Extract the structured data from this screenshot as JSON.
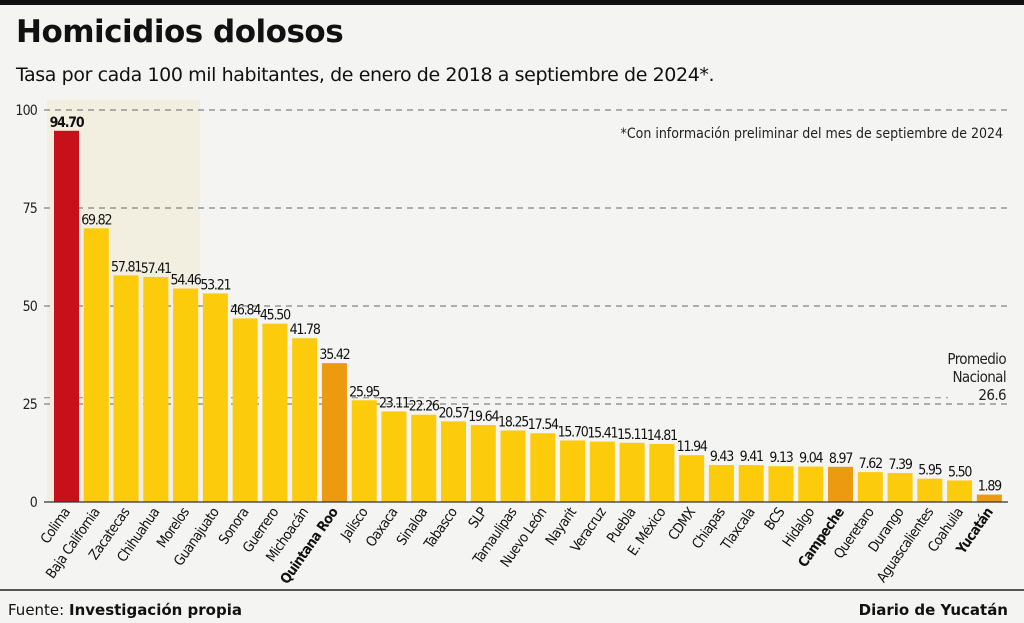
{
  "title": "Homicidios dolosos",
  "subtitle": "Tasa por cada 100 mil habitantes, de enero de 2018 a septiembre de 2024*.",
  "footer": {
    "source_label": "Fuente:",
    "source_value": "Investigación propia",
    "brand": "Diario de Yucatán"
  },
  "chart_data": {
    "type": "bar",
    "title": "Homicidios dolosos",
    "ylim": [
      0,
      100
    ],
    "yticks": [
      0,
      25,
      50,
      75,
      100
    ],
    "grid": "dashed horizontal",
    "note": "*Con información preliminar del mes de septiembre de 2024",
    "reference_line": {
      "label_lines": [
        "Promedio",
        "Nacional",
        "26.6"
      ],
      "value": 26.6
    },
    "categories": [
      "Colima",
      "Baja California",
      "Zacatecas",
      "Chihuahua",
      "Morelos",
      "Guanajuato",
      "Sonora",
      "Guerrero",
      "Michoacán",
      "Quintana Roo",
      "Jalisco",
      "Oaxaca",
      "Sinaloa",
      "Tabasco",
      "SLP",
      "Tamaulipas",
      "Nuevo León",
      "Nayarit",
      "Veracruz",
      "Puebla",
      "E. México",
      "CDMX",
      "Chiapas",
      "Tlaxcala",
      "BCS",
      "Hidalgo",
      "Campeche",
      "Queretaro",
      "Durango",
      "Aguascalientes",
      "Coahuila",
      "Yucatán"
    ],
    "values": [
      94.7,
      69.82,
      57.81,
      57.41,
      54.46,
      53.21,
      46.84,
      45.5,
      41.78,
      35.42,
      25.95,
      23.11,
      22.26,
      20.57,
      19.64,
      18.25,
      17.54,
      15.7,
      15.41,
      15.11,
      14.81,
      11.94,
      9.43,
      9.41,
      9.13,
      9.04,
      8.97,
      7.62,
      7.39,
      5.95,
      5.5,
      1.89
    ],
    "value_labels": [
      "94.70",
      "69.82",
      "57.81",
      "57.41",
      "54.46",
      "53.21",
      "46.84",
      "45.50",
      "41.78",
      "35.42",
      "25.95",
      "23.11",
      "22.26",
      "20.57",
      "19.64",
      "18.25",
      "17.54",
      "15.70",
      "15.41",
      "15.11",
      "14.81",
      "11.94",
      "9.43",
      "9.41",
      "9.13",
      "9.04",
      "8.97",
      "7.62",
      "7.39",
      "5.95",
      "5.50",
      "1.89"
    ],
    "highlighted": [
      "Colima",
      "Quintana Roo",
      "Campeche",
      "Yucatán"
    ],
    "colors": {
      "default": "#fccb0c",
      "top": "#c8101a",
      "regional": "#ec9a10",
      "highlight_band": "#f2efe0",
      "grid": "#666666"
    },
    "bar_colors": {
      "Colima": "#c8101a",
      "Quintana Roo": "#ec9a10",
      "Campeche": "#ec9a10",
      "Yucatán": "#ec9a10"
    }
  }
}
